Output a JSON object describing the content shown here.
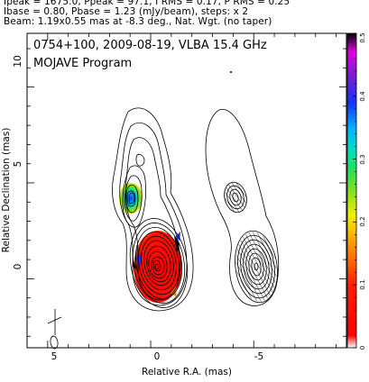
{
  "header": {
    "line1": "Ipeak = 1675.0, Ppeak = 97.1, I RMS = 0.17, P RMS = 0.25",
    "line2": "Ibase = 0.80, Pbase = 1.23 (mJy/beam), steps: x 2",
    "line3": "Beam: 1.19x0.55 mas at -8.3 deg., Nat. Wgt. (no taper)"
  },
  "plot": {
    "title_line1": "0754+100, 2009-08-19, VLBA 15.4 GHz",
    "title_line2": "MOJAVE Program"
  },
  "colors": {
    "contour": "#000000",
    "frame": "#000000",
    "colormap": [
      "#000000",
      "#e000e0",
      "#7020d0",
      "#1830ff",
      "#00b0ff",
      "#00e0c0",
      "#20e060",
      "#80e020",
      "#f0f000",
      "#ffa000",
      "#ff3000",
      "#ff0000"
    ]
  },
  "chart_data": {
    "type": "heatmap",
    "title": "0754+100, 2009-08-19, VLBA 15.4 GHz",
    "subtitle": "MOJAVE Program",
    "xlabel": "Relative R.A. (mas)",
    "ylabel": "Relative Declination (mas)",
    "x_ticks": [
      5,
      0,
      -5
    ],
    "y_ticks": [
      0,
      5,
      10
    ],
    "xlim": [
      6,
      -9.5
    ],
    "ylim": [
      -3.6,
      12.8
    ],
    "colorbar": {
      "ticks": [
        0,
        0.1,
        0.2,
        0.3,
        0.4,
        0.5
      ],
      "range": [
        0,
        0.5
      ]
    },
    "grid": false
  }
}
